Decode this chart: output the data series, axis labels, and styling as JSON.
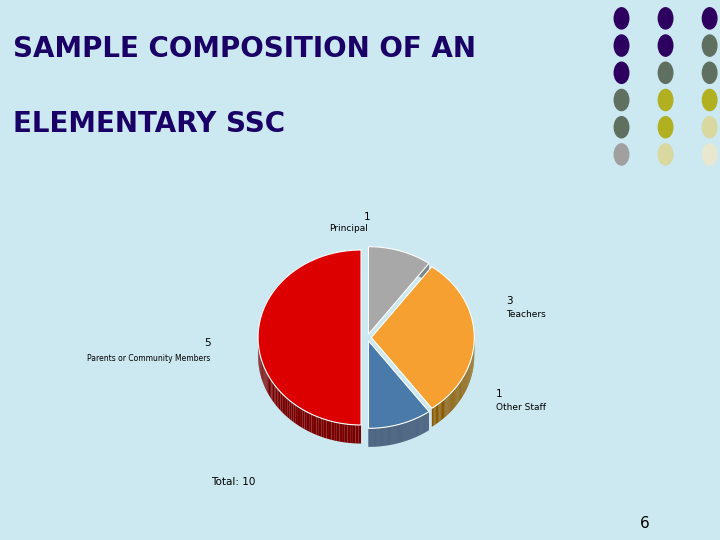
{
  "title_line1": "SAMPLE COMPOSITION OF AN",
  "title_line2": "ELEMENTARY SSC",
  "title_color": "#1a0066",
  "background_color": "#cce8f0",
  "chart_bg": "#ffffff",
  "slices": [
    {
      "label": "Principal",
      "value": 1,
      "color": "#a8a8a8",
      "dark_color": "#606060"
    },
    {
      "label": "Teachers",
      "value": 3,
      "color": "#f5a030",
      "dark_color": "#8b5a00"
    },
    {
      "label": "Other Staff",
      "value": 1,
      "color": "#4a7aaa",
      "dark_color": "#253c5e"
    },
    {
      "label": "Parents or Community Members",
      "value": 5,
      "color": "#dd0000",
      "dark_color": "#7a0000"
    }
  ],
  "total_label": "Total: 10",
  "page_number": "6",
  "dot_colors": [
    [
      "#2d0060",
      "#2d0060",
      "#2d0060"
    ],
    [
      "#2d0060",
      "#2d0060",
      "#607060"
    ],
    [
      "#2d0060",
      "#607060",
      "#607060"
    ],
    [
      "#607060",
      "#b0b020",
      "#b0b020"
    ],
    [
      "#607060",
      "#b0b020",
      "#d8d8a0"
    ],
    [
      "#a0a0a0",
      "#d8d8a0",
      "#e8e8d0"
    ]
  ]
}
